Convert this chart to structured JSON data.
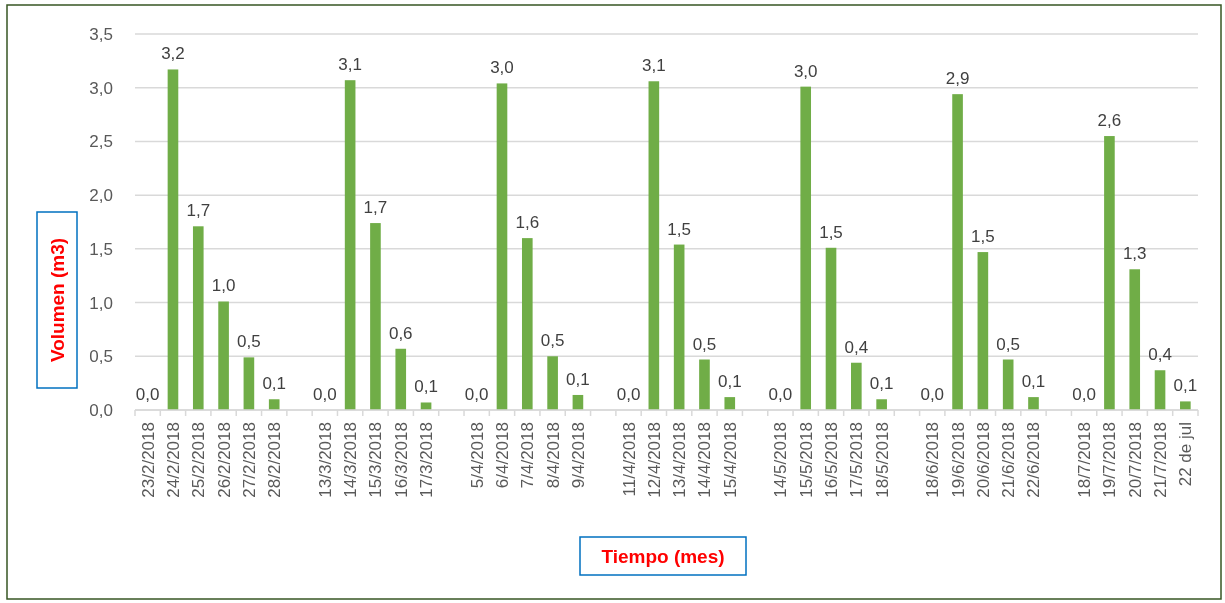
{
  "chart_data": {
    "type": "bar",
    "xlabel": "Tiempo (mes)",
    "ylabel": "Volumen (m3)",
    "categories": [
      "23/2/2018",
      "24/2/2018",
      "25/2/2018",
      "26/2/2018",
      "27/2/2018",
      "28/2/2018",
      null,
      "13/3/2018",
      "14/3/2018",
      "15/3/2018",
      "16/3/2018",
      "17/3/2018",
      null,
      "5/4/2018",
      "6/4/2018",
      "7/4/2018",
      "8/4/2018",
      "9/4/2018",
      null,
      "11/4/2018",
      "12/4/2018",
      "13/4/2018",
      "14/4/2018",
      "15/4/2018",
      null,
      "14/5/2018",
      "15/5/2018",
      "16/5/2018",
      "17/5/2018",
      "18/5/2018",
      null,
      "18/6/2018",
      "19/6/2018",
      "20/6/2018",
      "21/6/2018",
      "22/6/2018",
      null,
      "18/7/2018",
      "19/7/2018",
      "20/7/2018",
      "21/7/2018",
      "22 de jul"
    ],
    "values": [
      0,
      3.17,
      1.71,
      1.01,
      0.49,
      0.1,
      null,
      0,
      3.07,
      1.74,
      0.57,
      0.07,
      null,
      0,
      3.04,
      1.6,
      0.5,
      0.14,
      null,
      0,
      3.06,
      1.54,
      0.47,
      0.12,
      null,
      0,
      3.01,
      1.51,
      0.44,
      0.1,
      null,
      0,
      2.94,
      1.47,
      0.47,
      0.12,
      null,
      0,
      2.55,
      1.31,
      0.37,
      0.08
    ],
    "value_labels": [
      "0,0",
      "3,2",
      "1,7",
      "1,0",
      "0,5",
      "0,1",
      null,
      "0,0",
      "3,1",
      "1,7",
      "0,6",
      "0,1",
      null,
      "0,0",
      "3,0",
      "1,6",
      "0,5",
      "0,1",
      null,
      "0,0",
      "3,1",
      "1,5",
      "0,5",
      "0,1",
      null,
      "0,0",
      "3,0",
      "1,5",
      "0,4",
      "0,1",
      null,
      "0,0",
      "2,9",
      "1,5",
      "0,5",
      "0,1",
      null,
      "0,0",
      "2,6",
      "1,3",
      "0,4",
      "0,1"
    ],
    "color": "#70ad47",
    "ylim": [
      0,
      3.5
    ],
    "yticks": [
      {
        "value": 0,
        "label": "0,0"
      },
      {
        "value": 0.5,
        "label": "0,5"
      },
      {
        "value": 1,
        "label": "1,0"
      },
      {
        "value": 1.5,
        "label": "1,5"
      },
      {
        "value": 2,
        "label": "2,0"
      },
      {
        "value": 2.5,
        "label": "2,5"
      },
      {
        "value": 3,
        "label": "3,0"
      },
      {
        "value": 3.5,
        "label": "3,5"
      }
    ],
    "grid": "y"
  }
}
